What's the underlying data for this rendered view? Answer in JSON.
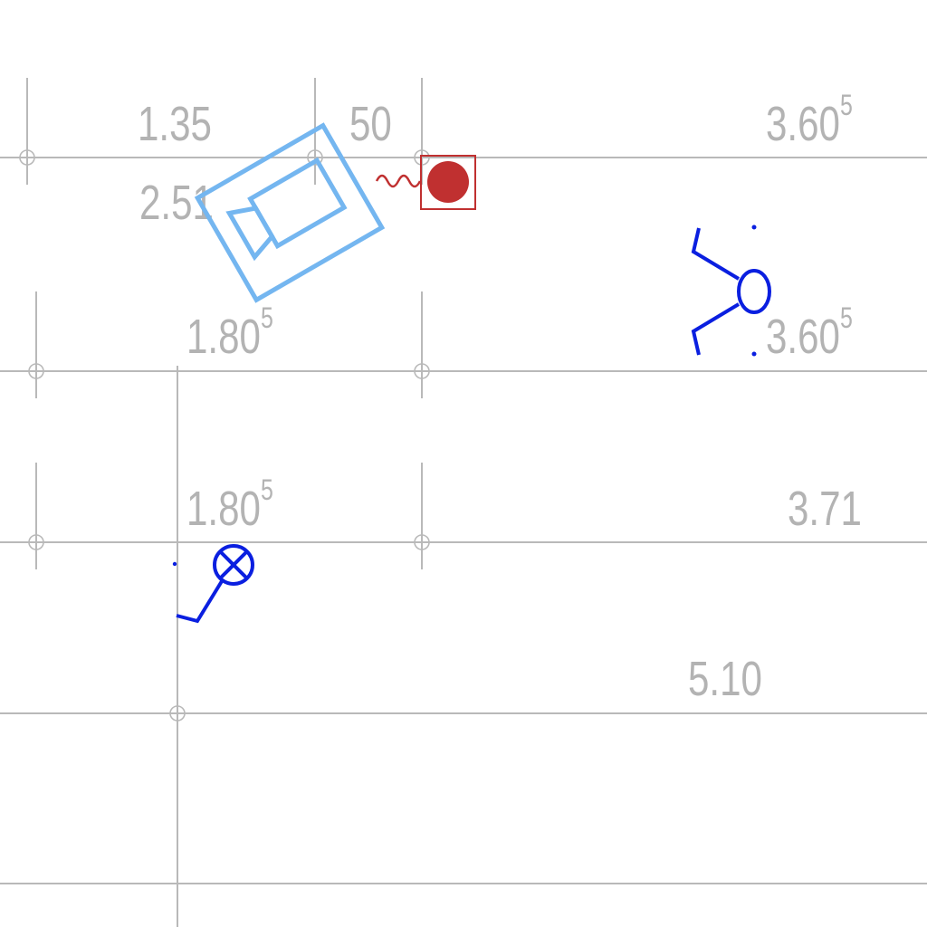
{
  "plan": {
    "dimensions": {
      "d1": {
        "value": "1.35",
        "sup": ""
      },
      "d2": {
        "value": "50",
        "sup": ""
      },
      "d3": {
        "value": "3.60",
        "sup": "5"
      },
      "d4": {
        "value": "2.51",
        "sup": ""
      },
      "d5": {
        "value": "1.80",
        "sup": "5"
      },
      "d6": {
        "value": "3.60",
        "sup": "5"
      },
      "d7": {
        "value": "1.80",
        "sup": "5"
      },
      "d8": {
        "value": "3.71",
        "sup": ""
      },
      "d9": {
        "value": "5.10",
        "sup": ""
      }
    },
    "symbols": {
      "camera": "security-camera-icon",
      "alarm": "alarm-sensor-icon",
      "luminaire": "light-fixture-icon",
      "outlet": "outlet-symbol-icon"
    },
    "colors": {
      "grid": "#b9b9b9",
      "text": "#b3b3b3",
      "camera": "#74b6f0",
      "alarm": "#c03030",
      "symbols": "#0a1fe0"
    }
  }
}
